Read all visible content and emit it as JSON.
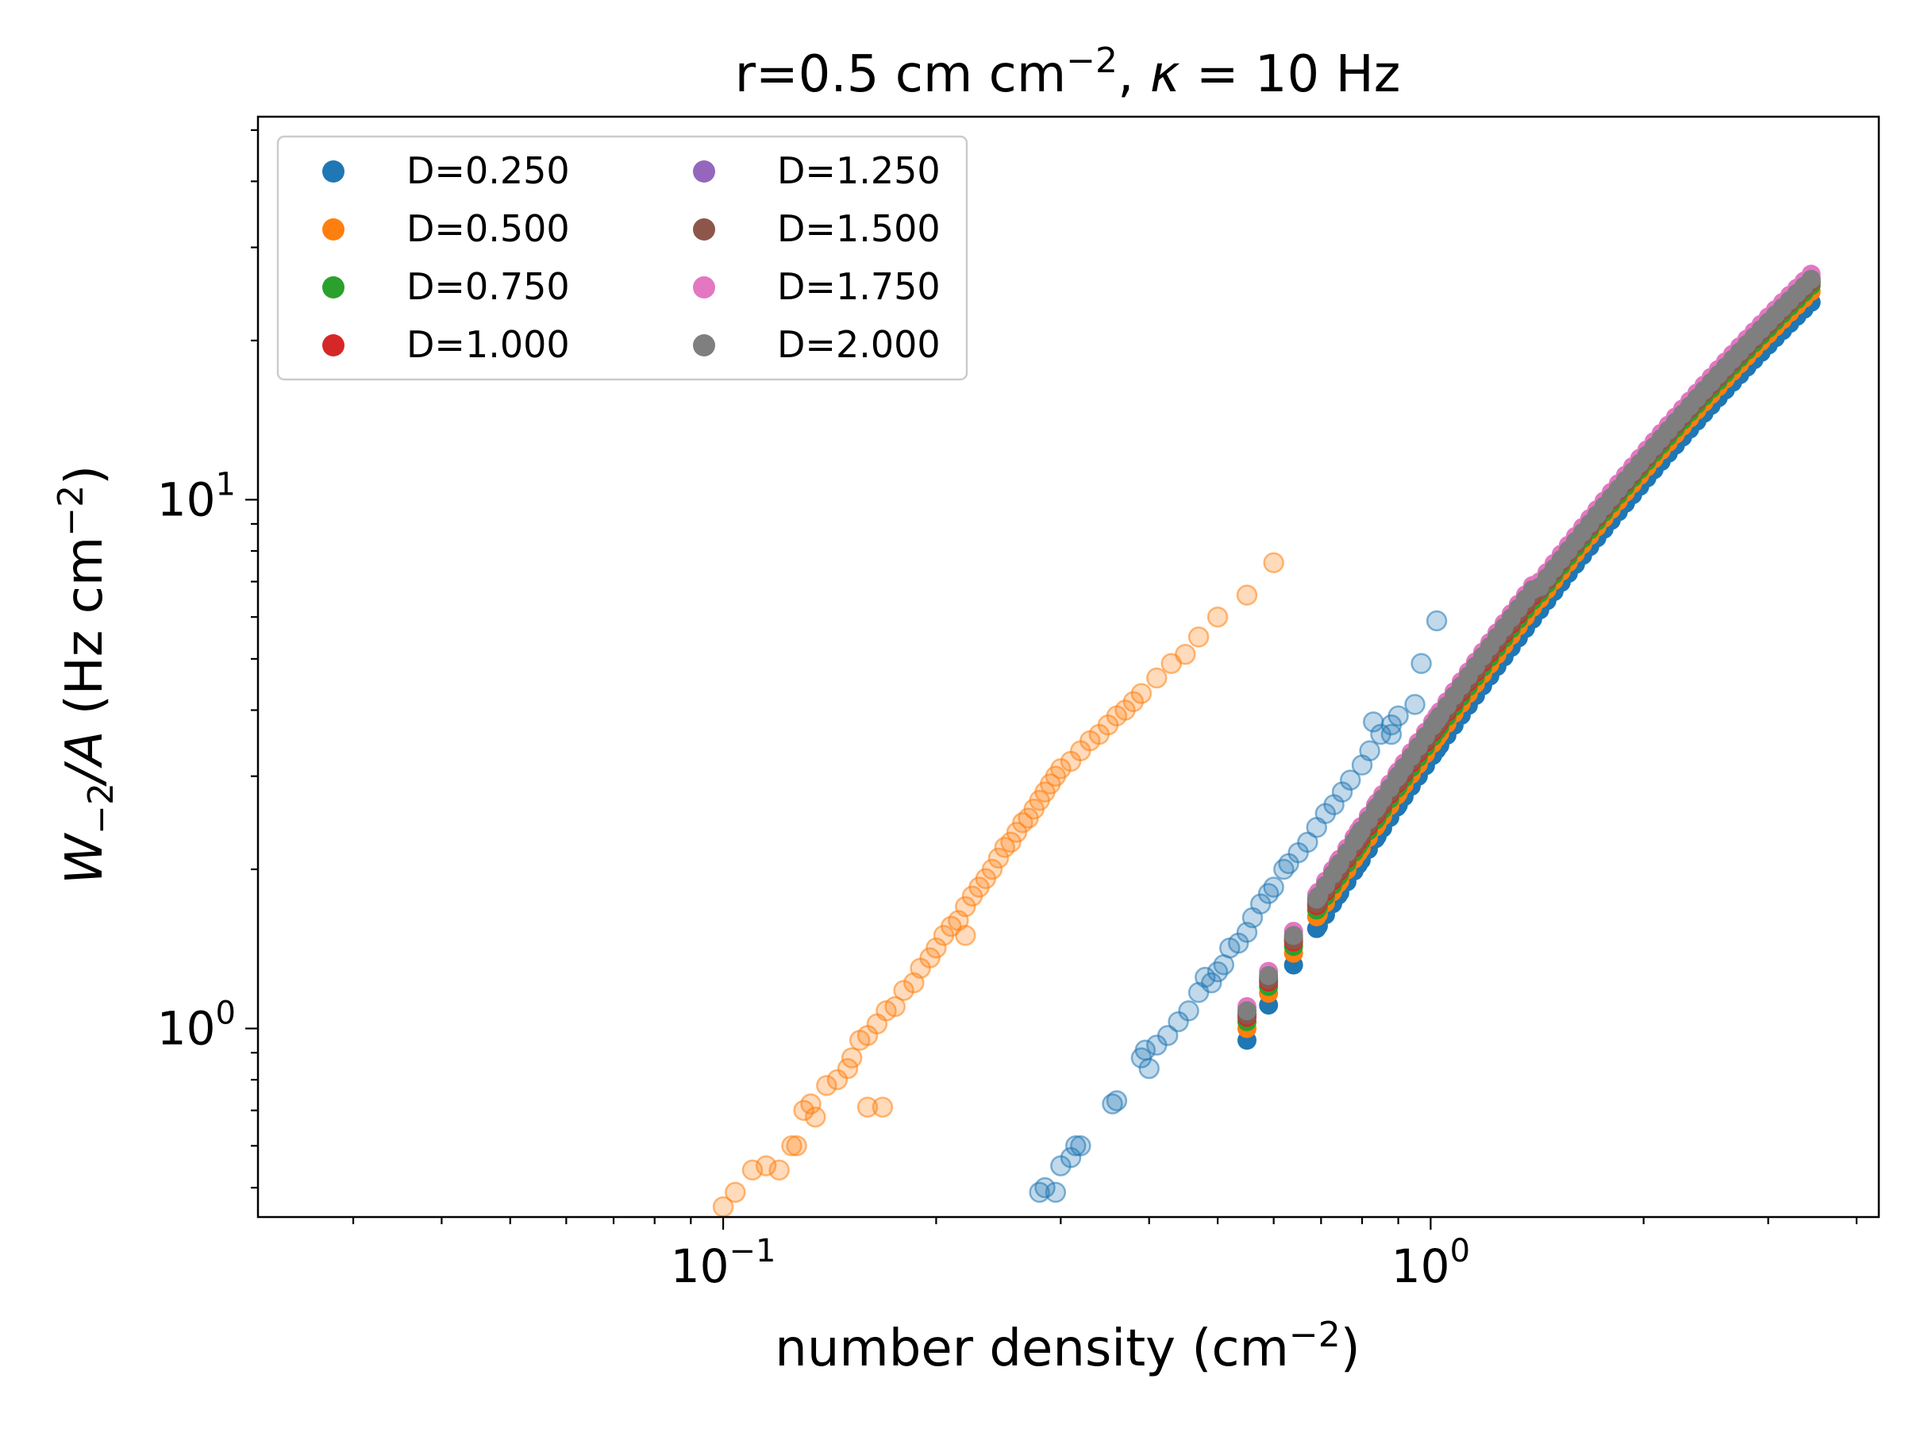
{
  "chart_data": {
    "type": "scatter",
    "title": "r=0.5 cm cm",
    "title_sup": "−2",
    "title_sep": ", ",
    "title_kappa": "κ",
    "title_tail": " = 10 Hz",
    "xlabel": "number density (cm",
    "xlabel_sup": "−2",
    "xlabel_tail": ")",
    "ylabel_W": "W",
    "ylabel_sub": "−2",
    "ylabel_mid": "/A",
    "ylabel_unit": " (Hz cm",
    "ylabel_sup": "−2",
    "ylabel_tail": ")",
    "xscale": "log",
    "yscale": "log",
    "xlim": [
      0.022,
      4.3
    ],
    "ylim": [
      0.44,
      53
    ],
    "grid": false,
    "legend_position": "top-left",
    "legend_columns": 2,
    "x_ticks": [
      {
        "base": "10",
        "exp": "−1",
        "value": 0.1
      },
      {
        "base": "10",
        "exp": "0",
        "value": 1
      }
    ],
    "y_ticks": [
      {
        "base": "10",
        "exp": "0",
        "value": 1
      },
      {
        "base": "10",
        "exp": "1",
        "value": 10
      }
    ],
    "series": [
      {
        "name": "D=0.250",
        "color": "#1f77b4",
        "x_min": 0.55,
        "y_at_min": 0.95
      },
      {
        "name": "D=0.500",
        "color": "#ff7f0e",
        "x_min": 0.55,
        "y_at_min": 1.0
      },
      {
        "name": "D=0.750",
        "color": "#2ca02c",
        "x_min": 0.55,
        "y_at_min": 1.03
      },
      {
        "name": "D=1.000",
        "color": "#d62728",
        "x_min": 0.55,
        "y_at_min": 1.05
      },
      {
        "name": "D=1.250",
        "color": "#9467bd",
        "x_min": 0.55,
        "y_at_min": 1.07
      },
      {
        "name": "D=1.500",
        "color": "#8c564b",
        "x_min": 0.55,
        "y_at_min": 1.06
      },
      {
        "name": "D=1.750",
        "color": "#e377c2",
        "x_min": 0.55,
        "y_at_min": 1.1
      },
      {
        "name": "D=2.000",
        "color": "#7f7f7f",
        "x_min": 0.55,
        "y_at_min": 1.08
      }
    ],
    "faded_series": [
      {
        "color": "#ff7f0e",
        "points": [
          [
            0.1,
            0.46
          ],
          [
            0.104,
            0.49
          ],
          [
            0.11,
            0.54
          ],
          [
            0.115,
            0.55
          ],
          [
            0.12,
            0.54
          ],
          [
            0.125,
            0.6
          ],
          [
            0.127,
            0.6
          ],
          [
            0.13,
            0.7
          ],
          [
            0.133,
            0.72
          ],
          [
            0.135,
            0.68
          ],
          [
            0.14,
            0.78
          ],
          [
            0.145,
            0.8
          ],
          [
            0.15,
            0.84
          ],
          [
            0.152,
            0.88
          ],
          [
            0.156,
            0.95
          ],
          [
            0.16,
            0.97
          ],
          [
            0.165,
            1.02
          ],
          [
            0.17,
            1.08
          ],
          [
            0.175,
            1.1
          ],
          [
            0.18,
            1.18
          ],
          [
            0.186,
            1.22
          ],
          [
            0.19,
            1.3
          ],
          [
            0.196,
            1.36
          ],
          [
            0.2,
            1.42
          ],
          [
            0.205,
            1.5
          ],
          [
            0.21,
            1.56
          ],
          [
            0.215,
            1.6
          ],
          [
            0.22,
            1.7
          ],
          [
            0.225,
            1.78
          ],
          [
            0.23,
            1.85
          ],
          [
            0.235,
            1.92
          ],
          [
            0.24,
            2.0
          ],
          [
            0.245,
            2.1
          ],
          [
            0.25,
            2.2
          ],
          [
            0.255,
            2.25
          ],
          [
            0.26,
            2.35
          ],
          [
            0.265,
            2.45
          ],
          [
            0.27,
            2.5
          ],
          [
            0.275,
            2.6
          ],
          [
            0.28,
            2.7
          ],
          [
            0.285,
            2.8
          ],
          [
            0.29,
            2.9
          ],
          [
            0.295,
            3.0
          ],
          [
            0.3,
            3.1
          ],
          [
            0.31,
            3.2
          ],
          [
            0.32,
            3.35
          ],
          [
            0.33,
            3.5
          ],
          [
            0.34,
            3.6
          ],
          [
            0.35,
            3.75
          ],
          [
            0.36,
            3.9
          ],
          [
            0.37,
            4.0
          ],
          [
            0.38,
            4.15
          ],
          [
            0.39,
            4.3
          ],
          [
            0.41,
            4.6
          ],
          [
            0.43,
            4.9
          ],
          [
            0.45,
            5.1
          ],
          [
            0.47,
            5.5
          ],
          [
            0.5,
            6.0
          ],
          [
            0.55,
            6.6
          ],
          [
            0.6,
            7.6
          ],
          [
            0.16,
            0.71
          ],
          [
            0.22,
            1.5
          ],
          [
            0.168,
            0.71
          ]
        ]
      },
      {
        "color": "#1f77b4",
        "points": [
          [
            0.28,
            0.49
          ],
          [
            0.285,
            0.5
          ],
          [
            0.295,
            0.49
          ],
          [
            0.3,
            0.55
          ],
          [
            0.31,
            0.57
          ],
          [
            0.315,
            0.6
          ],
          [
            0.32,
            0.6
          ],
          [
            0.355,
            0.72
          ],
          [
            0.36,
            0.73
          ],
          [
            0.39,
            0.88
          ],
          [
            0.395,
            0.91
          ],
          [
            0.4,
            0.84
          ],
          [
            0.41,
            0.93
          ],
          [
            0.425,
            0.97
          ],
          [
            0.44,
            1.03
          ],
          [
            0.455,
            1.08
          ],
          [
            0.47,
            1.17
          ],
          [
            0.48,
            1.25
          ],
          [
            0.49,
            1.22
          ],
          [
            0.5,
            1.28
          ],
          [
            0.51,
            1.32
          ],
          [
            0.52,
            1.42
          ],
          [
            0.535,
            1.45
          ],
          [
            0.55,
            1.52
          ],
          [
            0.56,
            1.62
          ],
          [
            0.575,
            1.72
          ],
          [
            0.59,
            1.8
          ],
          [
            0.6,
            1.85
          ],
          [
            0.62,
            2.0
          ],
          [
            0.63,
            2.05
          ],
          [
            0.65,
            2.15
          ],
          [
            0.67,
            2.25
          ],
          [
            0.69,
            2.4
          ],
          [
            0.71,
            2.55
          ],
          [
            0.73,
            2.65
          ],
          [
            0.75,
            2.8
          ],
          [
            0.77,
            2.95
          ],
          [
            0.8,
            3.15
          ],
          [
            0.82,
            3.35
          ],
          [
            0.85,
            3.6
          ],
          [
            0.88,
            3.75
          ],
          [
            0.9,
            3.9
          ],
          [
            0.95,
            4.1
          ],
          [
            0.83,
            3.8
          ],
          [
            0.88,
            3.6
          ],
          [
            0.97,
            4.9
          ],
          [
            1.02,
            5.9
          ]
        ]
      }
    ]
  }
}
